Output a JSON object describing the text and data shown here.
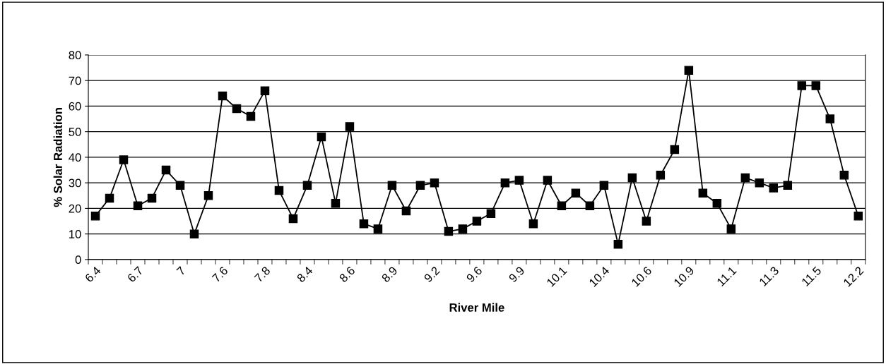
{
  "chart_data": {
    "type": "line",
    "xlabel": "River Mile",
    "ylabel": "% Solar Radiation",
    "categories": [
      "6.4",
      null,
      null,
      "6.7",
      null,
      null,
      "7",
      null,
      null,
      "7.6",
      null,
      null,
      "7.8",
      null,
      null,
      "8.4",
      null,
      null,
      "8.6",
      null,
      null,
      "8.9",
      null,
      null,
      "9.2",
      null,
      null,
      "9.6",
      null,
      null,
      "9.9",
      null,
      null,
      "10.1",
      null,
      null,
      "10.4",
      null,
      null,
      "10.6",
      null,
      null,
      "10.9",
      null,
      null,
      "11.1",
      null,
      null,
      "11.3",
      null,
      null,
      "11.5",
      null,
      null,
      "12.2"
    ],
    "series": [
      {
        "color": "#000000",
        "values": [
          17,
          24,
          39,
          21,
          24,
          35,
          29,
          10,
          25,
          64,
          59,
          56,
          66,
          27,
          16,
          29,
          48,
          22,
          52,
          14,
          12,
          29,
          19,
          29,
          30,
          11,
          12,
          15,
          18,
          30,
          31,
          14,
          31,
          21,
          26,
          21,
          29,
          6,
          32,
          15,
          33,
          43,
          74,
          26,
          22,
          12,
          32,
          30,
          28,
          29,
          68,
          68,
          55,
          33,
          17
        ]
      }
    ],
    "ylim": [
      0,
      80
    ],
    "yticks": [
      0,
      10,
      20,
      30,
      40,
      50,
      60,
      70,
      80
    ],
    "grid": "y",
    "marker": "square",
    "line_style": "solid",
    "legend": false
  }
}
